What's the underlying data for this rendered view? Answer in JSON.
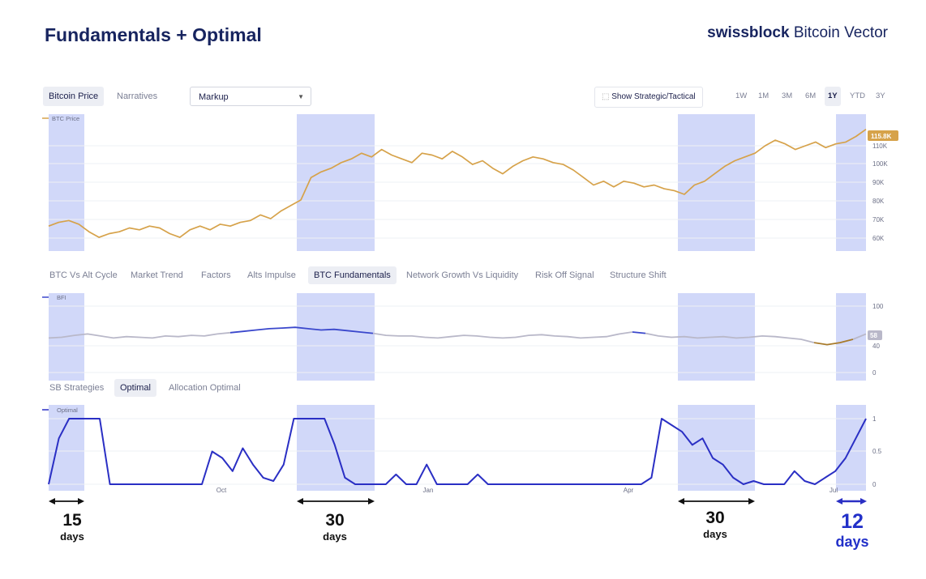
{
  "header": {
    "title": "Fundamentals + Optimal",
    "brand_bold": "swissblock",
    "brand_rest": " Bitcoin Vector"
  },
  "toolbar": {
    "tabs": [
      {
        "label": "Bitcoin Price",
        "active": true
      },
      {
        "label": "Narratives",
        "active": false
      }
    ],
    "select_value": "Markup",
    "show_button": "Show Strategic/Tactical",
    "ranges": [
      {
        "label": "1W"
      },
      {
        "label": "1M"
      },
      {
        "label": "3M"
      },
      {
        "label": "6M"
      },
      {
        "label": "1Y",
        "active": true
      },
      {
        "label": "YTD"
      },
      {
        "label": "3Y"
      }
    ]
  },
  "indicator_tabs": [
    {
      "label": "BTC Vs Alt Cycle"
    },
    {
      "label": "Market Trend"
    },
    {
      "label": "Factors"
    },
    {
      "label": "Alts Impulse"
    },
    {
      "label": "BTC Fundamentals",
      "active": true
    },
    {
      "label": "Network Growth Vs Liquidity"
    },
    {
      "label": "Risk Off Signal"
    },
    {
      "label": "Structure Shift"
    }
  ],
  "strategy_tabs": [
    {
      "label": "SB Strategies"
    },
    {
      "label": "Optimal",
      "active": true
    },
    {
      "label": "Allocation Optimal"
    }
  ],
  "colors": {
    "price": "#d6a24a",
    "bfi": "#b9b8c9",
    "bfi_high": "#3a47cc",
    "bfi_low": "#a87a2a",
    "optimal": "#2a2fc4",
    "highlight": "#c9d1f8",
    "arrow_blue": "#2a2fc4"
  },
  "chart_data": [
    {
      "type": "line",
      "legend": "BTC Price",
      "current_label": "115.8K",
      "y_ticks": [
        "110K",
        "100K",
        "90K",
        "80K",
        "70K",
        "60K"
      ],
      "ylim": [
        55,
        120
      ],
      "x_ticks": [],
      "series": [
        {
          "name": "BTC Price",
          "values": [
            64,
            66,
            67,
            65,
            61,
            58,
            60,
            61,
            63,
            62,
            64,
            63,
            60,
            58,
            62,
            64,
            62,
            65,
            64,
            66,
            67,
            70,
            68,
            72,
            75,
            78,
            90,
            93,
            95,
            98,
            100,
            103,
            101,
            105,
            102,
            100,
            98,
            103,
            102,
            100,
            104,
            101,
            97,
            99,
            95,
            92,
            96,
            99,
            101,
            100,
            98,
            97,
            94,
            90,
            86,
            88,
            85,
            88,
            87,
            85,
            86,
            84,
            83,
            81,
            86,
            88,
            92,
            96,
            99,
            101,
            103,
            107,
            110,
            108,
            105,
            107,
            109,
            106,
            108,
            109,
            112,
            115.8
          ]
        }
      ]
    },
    {
      "type": "line",
      "legend": "BFI",
      "current_label": "58",
      "y_ticks": [
        "100",
        "40",
        "0"
      ],
      "ylim": [
        0,
        100
      ],
      "series": [
        {
          "name": "BFI",
          "values": [
            52,
            53,
            56,
            58,
            55,
            52,
            54,
            53,
            52,
            55,
            54,
            56,
            55,
            58,
            60,
            62,
            64,
            66,
            67,
            68,
            66,
            64,
            65,
            63,
            61,
            59,
            56,
            55,
            55,
            53,
            52,
            54,
            56,
            55,
            53,
            52,
            53,
            56,
            57,
            55,
            54,
            52,
            53,
            54,
            58,
            61,
            59,
            55,
            53,
            54,
            52,
            53,
            54,
            52,
            53,
            55,
            54,
            52,
            50,
            45,
            42,
            45,
            50,
            58
          ]
        }
      ]
    },
    {
      "type": "line",
      "legend": "Optimal",
      "y_ticks": [
        "1",
        "0.5",
        "0"
      ],
      "ylim": [
        0,
        1
      ],
      "x_ticks": [
        "Oct",
        "Jan",
        "Apr",
        "Jul"
      ],
      "series": [
        {
          "name": "Optimal",
          "values": [
            0,
            0.7,
            1,
            1,
            1,
            1,
            0,
            0,
            0,
            0,
            0,
            0,
            0,
            0,
            0,
            0,
            0.5,
            0.4,
            0.2,
            0.55,
            0.3,
            0.1,
            0.05,
            0.3,
            1,
            1,
            1,
            1,
            0.6,
            0.1,
            0,
            0,
            0,
            0,
            0.15,
            0,
            0,
            0.3,
            0,
            0,
            0,
            0,
            0.15,
            0,
            0,
            0,
            0,
            0,
            0,
            0,
            0,
            0,
            0,
            0,
            0,
            0,
            0,
            0,
            0,
            0.1,
            1,
            0.9,
            0.8,
            0.6,
            0.7,
            0.4,
            0.3,
            0.1,
            0,
            0.05,
            0,
            0,
            0,
            0.2,
            0.05,
            0,
            0.1,
            0.2,
            0.4,
            0.7,
            1
          ]
        }
      ]
    }
  ],
  "annotations": [
    {
      "num": "15",
      "unit": "days"
    },
    {
      "num": "30",
      "unit": "days"
    },
    {
      "num": "30",
      "unit": "days"
    },
    {
      "num": "12",
      "unit": "days"
    }
  ]
}
